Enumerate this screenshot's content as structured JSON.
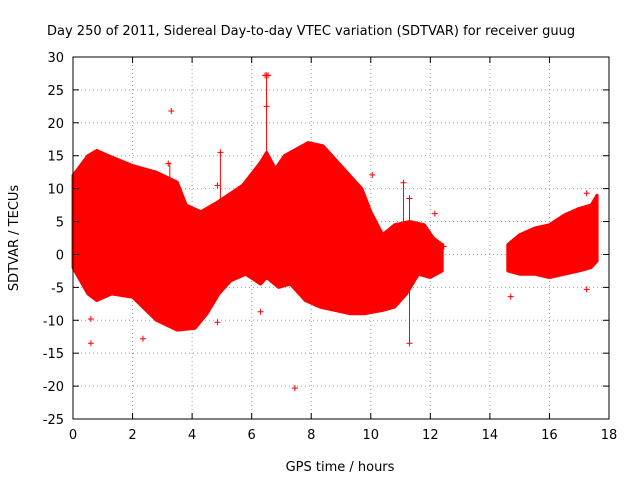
{
  "chart_data": {
    "type": "scatter",
    "title": "Day 250 of 2011, Sidereal Day-to-day VTEC variation (SDTVAR) for receiver guug",
    "xlabel": "GPS time / hours",
    "ylabel": "SDTVAR / TECUs",
    "xlim": [
      0,
      18
    ],
    "ylim": [
      -25,
      30
    ],
    "x_ticks": [
      0,
      2,
      4,
      6,
      8,
      10,
      12,
      14,
      16,
      18
    ],
    "y_ticks": [
      -25,
      -20,
      -15,
      -10,
      -5,
      0,
      5,
      10,
      15,
      20,
      25,
      30
    ],
    "grid": true,
    "marker": "+",
    "color": "#ff0000",
    "segments": [
      {
        "name": "main-band",
        "upper": [
          [
            0,
            12
          ],
          [
            0.5,
            15
          ],
          [
            0.8,
            15.8
          ],
          [
            1.2,
            15
          ],
          [
            2,
            13.5
          ],
          [
            2.8,
            12.5
          ],
          [
            3.5,
            11
          ],
          [
            3.8,
            7.5
          ],
          [
            4.3,
            6.5
          ],
          [
            4.8,
            7.8
          ],
          [
            5.2,
            9
          ],
          [
            5.7,
            10.5
          ],
          [
            6.3,
            14
          ],
          [
            6.5,
            15.5
          ],
          [
            6.8,
            13
          ],
          [
            7.1,
            15
          ],
          [
            7.5,
            16
          ],
          [
            7.9,
            17
          ],
          [
            8.4,
            16.5
          ],
          [
            8.8,
            14.5
          ],
          [
            9.3,
            12
          ],
          [
            9.7,
            10
          ],
          [
            10,
            6.5
          ],
          [
            10.4,
            3
          ],
          [
            10.8,
            4.5
          ],
          [
            11.3,
            5
          ],
          [
            11.8,
            4.5
          ],
          [
            12.1,
            2.5
          ],
          [
            12.4,
            1.5
          ]
        ],
        "lower": [
          [
            0,
            -2
          ],
          [
            0.5,
            -6
          ],
          [
            0.8,
            -7
          ],
          [
            1.3,
            -6
          ],
          [
            2,
            -6.5
          ],
          [
            2.8,
            -10
          ],
          [
            3.5,
            -11.5
          ],
          [
            4.1,
            -11.2
          ],
          [
            4.5,
            -9
          ],
          [
            4.9,
            -6
          ],
          [
            5.3,
            -4
          ],
          [
            5.8,
            -3
          ],
          [
            6.3,
            -4.5
          ],
          [
            6.5,
            -3.5
          ],
          [
            6.9,
            -5
          ],
          [
            7.3,
            -4.5
          ],
          [
            7.8,
            -7
          ],
          [
            8.3,
            -8
          ],
          [
            8.8,
            -8.5
          ],
          [
            9.3,
            -9
          ],
          [
            9.8,
            -9
          ],
          [
            10.4,
            -8.5
          ],
          [
            10.8,
            -8
          ],
          [
            11.2,
            -6
          ],
          [
            11.6,
            -3
          ],
          [
            12,
            -3.5
          ],
          [
            12.4,
            -2.5
          ]
        ]
      },
      {
        "name": "late-band",
        "upper": [
          [
            14.6,
            1.5
          ],
          [
            15,
            3
          ],
          [
            15.5,
            4
          ],
          [
            16,
            4.5
          ],
          [
            16.5,
            6
          ],
          [
            17,
            7
          ],
          [
            17.4,
            7.5
          ],
          [
            17.6,
            9
          ]
        ],
        "lower": [
          [
            14.6,
            -2.5
          ],
          [
            15,
            -3
          ],
          [
            15.5,
            -3
          ],
          [
            16,
            -3.5
          ],
          [
            16.5,
            -3
          ],
          [
            17,
            -2.5
          ],
          [
            17.4,
            -2
          ],
          [
            17.6,
            -1
          ]
        ]
      }
    ],
    "outliers": [
      {
        "x": 0.6,
        "y": -13.5
      },
      {
        "x": 0.6,
        "y": -9.8
      },
      {
        "x": 2.35,
        "y": -12.8
      },
      {
        "x": 3.3,
        "y": 21.8
      },
      {
        "x": 3.2,
        "y": 13.8
      },
      {
        "x": 4.85,
        "y": -10.3
      },
      {
        "x": 4.95,
        "y": 15.5
      },
      {
        "x": 4.85,
        "y": 10.5
      },
      {
        "x": 6.3,
        "y": -8.7
      },
      {
        "x": 6.45,
        "y": 27.2
      },
      {
        "x": 6.5,
        "y": 27.2
      },
      {
        "x": 6.55,
        "y": 27.2
      },
      {
        "x": 6.5,
        "y": 22.5
      },
      {
        "x": 7.45,
        "y": -20.3
      },
      {
        "x": 10.05,
        "y": 12.1
      },
      {
        "x": 11.1,
        "y": 10.9
      },
      {
        "x": 11.3,
        "y": -13.5
      },
      {
        "x": 11.3,
        "y": 8.5
      },
      {
        "x": 12.15,
        "y": 6.2
      },
      {
        "x": 12.45,
        "y": 1.2
      },
      {
        "x": 14.7,
        "y": -6.4
      },
      {
        "x": 17.25,
        "y": 9.3
      },
      {
        "x": 17.25,
        "y": -5.3
      }
    ],
    "spikes": [
      {
        "x": 6.5,
        "y1": 15,
        "y2": 27.2
      },
      {
        "x": 11.3,
        "y1": -13.5,
        "y2": 9
      },
      {
        "x": 11.1,
        "y1": 4,
        "y2": 10.9
      },
      {
        "x": 4.95,
        "y1": 7,
        "y2": 15.5
      },
      {
        "x": 3.25,
        "y1": 11,
        "y2": 14
      }
    ]
  }
}
